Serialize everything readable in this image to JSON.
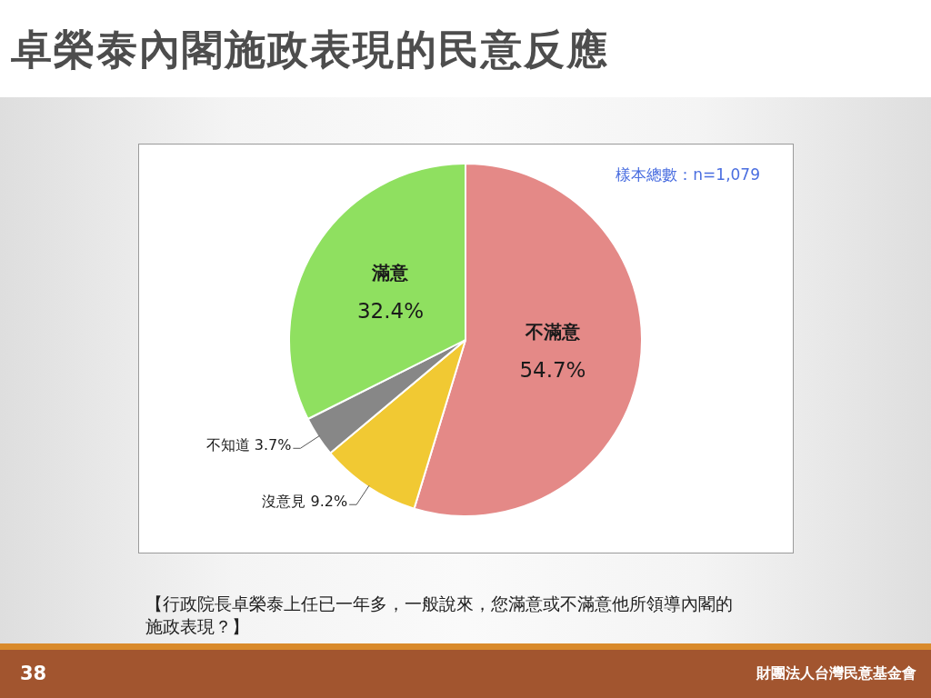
{
  "chart_data": {
    "type": "pie",
    "title": "卓榮泰內閣施政表現的民意反應",
    "categories": [
      "不滿意",
      "沒意見",
      "不知道",
      "滿意"
    ],
    "values": [
      54.7,
      9.2,
      3.7,
      32.4
    ],
    "value_labels": [
      "54.7%",
      "9.2%",
      "3.7%",
      "32.4%"
    ],
    "colors": [
      "#e48987",
      "#f1c933",
      "#878787",
      "#8fe060"
    ],
    "legend": false,
    "annotations": [
      "樣本總數：n=1,079",
      "【行政院長卓榮泰上任已一年多，一般說來，您滿意或不滿意他所領導內閣的施政表現？】",
      "38",
      "財團法人台灣民意基金會"
    ]
  }
}
